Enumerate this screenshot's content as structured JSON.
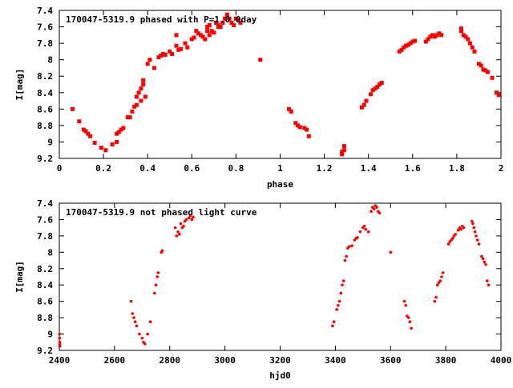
{
  "chart_data": [
    {
      "type": "scatter",
      "title": "170047-5319.9 phased with P=1.0 0day",
      "xlabel": "phase",
      "ylabel": "I[mag]",
      "xlim": [
        0,
        2
      ],
      "ylim": [
        9.2,
        7.4
      ],
      "y_inverted": true,
      "grid": false,
      "xticks": [
        "0",
        "0.2",
        "0.4",
        "0.6",
        "0.8",
        "1",
        "1.2",
        "1.4",
        "1.6",
        "1.8",
        "2"
      ],
      "yticks": [
        "7.4",
        "7.6",
        "7.8",
        "8",
        "8.2",
        "8.4",
        "8.6",
        "8.8",
        "9",
        "9.2"
      ],
      "marker_color": "#ff0000",
      "points": [
        [
          0.06,
          8.6
        ],
        [
          0.09,
          8.75
        ],
        [
          0.11,
          8.85
        ],
        [
          0.12,
          8.87
        ],
        [
          0.13,
          8.9
        ],
        [
          0.14,
          8.93
        ],
        [
          0.16,
          9.01
        ],
        [
          0.19,
          9.07
        ],
        [
          0.21,
          9.1
        ],
        [
          0.24,
          9.03
        ],
        [
          0.26,
          9.0
        ],
        [
          0.26,
          8.9
        ],
        [
          0.27,
          8.88
        ],
        [
          0.28,
          8.85
        ],
        [
          0.29,
          8.83
        ],
        [
          0.31,
          8.7
        ],
        [
          0.32,
          8.7
        ],
        [
          0.33,
          8.63
        ],
        [
          0.34,
          8.57
        ],
        [
          0.35,
          8.55
        ],
        [
          0.35,
          8.45
        ],
        [
          0.36,
          8.4
        ],
        [
          0.37,
          8.35
        ],
        [
          0.37,
          8.5
        ],
        [
          0.38,
          8.3
        ],
        [
          0.38,
          8.25
        ],
        [
          0.39,
          8.45
        ],
        [
          0.4,
          8.05
        ],
        [
          0.41,
          8.0
        ],
        [
          0.43,
          8.1
        ],
        [
          0.45,
          7.97
        ],
        [
          0.46,
          7.95
        ],
        [
          0.47,
          7.93
        ],
        [
          0.48,
          7.94
        ],
        [
          0.5,
          7.9
        ],
        [
          0.51,
          7.93
        ],
        [
          0.53,
          7.7
        ],
        [
          0.53,
          7.83
        ],
        [
          0.54,
          7.88
        ],
        [
          0.55,
          7.87
        ],
        [
          0.57,
          7.8
        ],
        [
          0.58,
          7.85
        ],
        [
          0.6,
          7.75
        ],
        [
          0.61,
          7.73
        ],
        [
          0.62,
          7.65
        ],
        [
          0.63,
          7.68
        ],
        [
          0.64,
          7.7
        ],
        [
          0.65,
          7.72
        ],
        [
          0.66,
          7.75
        ],
        [
          0.67,
          7.6
        ],
        [
          0.67,
          7.65
        ],
        [
          0.68,
          7.58
        ],
        [
          0.68,
          7.7
        ],
        [
          0.69,
          7.65
        ],
        [
          0.7,
          7.67
        ],
        [
          0.71,
          7.55
        ],
        [
          0.72,
          7.58
        ],
        [
          0.72,
          7.6
        ],
        [
          0.73,
          7.6
        ],
        [
          0.74,
          7.55
        ],
        [
          0.75,
          7.5
        ],
        [
          0.76,
          7.45
        ],
        [
          0.77,
          7.5
        ],
        [
          0.78,
          7.55
        ],
        [
          0.79,
          7.58
        ],
        [
          0.8,
          7.5
        ],
        [
          0.81,
          7.52
        ],
        [
          0.82,
          7.55
        ],
        [
          0.91,
          8.0
        ],
        [
          1.04,
          8.6
        ],
        [
          1.05,
          8.63
        ],
        [
          1.07,
          8.77
        ],
        [
          1.08,
          8.8
        ],
        [
          1.09,
          8.82
        ],
        [
          1.11,
          8.83
        ],
        [
          1.12,
          8.85
        ],
        [
          1.13,
          8.93
        ],
        [
          1.28,
          9.15
        ],
        [
          1.28,
          9.12
        ],
        [
          1.29,
          9.05
        ],
        [
          1.29,
          9.1
        ],
        [
          1.37,
          8.58
        ],
        [
          1.38,
          8.55
        ],
        [
          1.39,
          8.5
        ],
        [
          1.41,
          8.42
        ],
        [
          1.42,
          8.37
        ],
        [
          1.43,
          8.35
        ],
        [
          1.44,
          8.33
        ],
        [
          1.45,
          8.3
        ],
        [
          1.46,
          8.28
        ],
        [
          1.54,
          7.9
        ],
        [
          1.55,
          7.88
        ],
        [
          1.56,
          7.85
        ],
        [
          1.57,
          7.83
        ],
        [
          1.58,
          7.82
        ],
        [
          1.59,
          7.8
        ],
        [
          1.6,
          7.78
        ],
        [
          1.61,
          7.77
        ],
        [
          1.66,
          7.78
        ],
        [
          1.67,
          7.75
        ],
        [
          1.68,
          7.72
        ],
        [
          1.69,
          7.7
        ],
        [
          1.7,
          7.72
        ],
        [
          1.71,
          7.7
        ],
        [
          1.72,
          7.68
        ],
        [
          1.73,
          7.7
        ],
        [
          1.82,
          7.62
        ],
        [
          1.82,
          7.65
        ],
        [
          1.83,
          7.7
        ],
        [
          1.84,
          7.72
        ],
        [
          1.85,
          7.75
        ],
        [
          1.86,
          7.8
        ],
        [
          1.87,
          7.85
        ],
        [
          1.88,
          7.9
        ],
        [
          1.9,
          8.05
        ],
        [
          1.91,
          8.07
        ],
        [
          1.92,
          8.12
        ],
        [
          1.93,
          8.13
        ],
        [
          1.94,
          8.15
        ],
        [
          1.96,
          8.22
        ],
        [
          1.98,
          8.4
        ],
        [
          1.99,
          8.43
        ]
      ]
    },
    {
      "type": "scatter",
      "title": "170047-5319.9 not phased light curve",
      "xlabel": "hjd0",
      "ylabel": "I[mag]",
      "xlim": [
        2400,
        4000
      ],
      "ylim": [
        9.2,
        7.4
      ],
      "y_inverted": true,
      "grid": false,
      "xticks": [
        "2400",
        "2600",
        "2800",
        "3000",
        "3200",
        "3400",
        "3600",
        "3800",
        "4000"
      ],
      "yticks": [
        "7.4",
        "7.6",
        "7.8",
        "8",
        "8.2",
        "8.4",
        "8.6",
        "8.8",
        "9",
        "9.2"
      ],
      "marker_color": "#ff0000",
      "points": [
        [
          2401,
          9.0
        ],
        [
          2401,
          9.05
        ],
        [
          2402,
          9.1
        ],
        [
          2402,
          9.13
        ],
        [
          2402,
          9.15
        ],
        [
          2660,
          8.6
        ],
        [
          2665,
          8.75
        ],
        [
          2670,
          8.8
        ],
        [
          2675,
          8.85
        ],
        [
          2680,
          8.9
        ],
        [
          2690,
          9.0
        ],
        [
          2700,
          9.05
        ],
        [
          2705,
          9.1
        ],
        [
          2710,
          9.12
        ],
        [
          2720,
          9.0
        ],
        [
          2730,
          8.85
        ],
        [
          2745,
          8.5
        ],
        [
          2750,
          8.4
        ],
        [
          2755,
          8.3
        ],
        [
          2758,
          8.25
        ],
        [
          2770,
          8.0
        ],
        [
          2773,
          7.98
        ],
        [
          2820,
          7.7
        ],
        [
          2825,
          7.8
        ],
        [
          2830,
          7.75
        ],
        [
          2835,
          7.78
        ],
        [
          2840,
          7.65
        ],
        [
          2845,
          7.7
        ],
        [
          2850,
          7.68
        ],
        [
          2855,
          7.62
        ],
        [
          2860,
          7.6
        ],
        [
          2870,
          7.58
        ],
        [
          2875,
          7.55
        ],
        [
          2880,
          7.6
        ],
        [
          2885,
          7.57
        ],
        [
          3390,
          8.9
        ],
        [
          3395,
          8.85
        ],
        [
          3405,
          8.7
        ],
        [
          3410,
          8.65
        ],
        [
          3415,
          8.6
        ],
        [
          3420,
          8.5
        ],
        [
          3425,
          8.4
        ],
        [
          3430,
          8.35
        ],
        [
          3435,
          8.1
        ],
        [
          3440,
          8.05
        ],
        [
          3445,
          7.95
        ],
        [
          3450,
          7.93
        ],
        [
          3460,
          7.92
        ],
        [
          3470,
          7.85
        ],
        [
          3475,
          7.83
        ],
        [
          3480,
          7.82
        ],
        [
          3490,
          7.75
        ],
        [
          3500,
          7.7
        ],
        [
          3505,
          7.68
        ],
        [
          3510,
          7.72
        ],
        [
          3520,
          7.75
        ],
        [
          3530,
          7.5
        ],
        [
          3535,
          7.45
        ],
        [
          3540,
          7.47
        ],
        [
          3545,
          7.43
        ],
        [
          3550,
          7.45
        ],
        [
          3555,
          7.5
        ],
        [
          3560,
          7.52
        ],
        [
          3600,
          8.0
        ],
        [
          3650,
          8.6
        ],
        [
          3655,
          8.65
        ],
        [
          3660,
          8.78
        ],
        [
          3665,
          8.8
        ],
        [
          3670,
          8.85
        ],
        [
          3675,
          8.93
        ],
        [
          3760,
          8.6
        ],
        [
          3765,
          8.55
        ],
        [
          3770,
          8.4
        ],
        [
          3775,
          8.37
        ],
        [
          3780,
          8.35
        ],
        [
          3785,
          8.3
        ],
        [
          3790,
          8.25
        ],
        [
          3810,
          7.9
        ],
        [
          3815,
          7.87
        ],
        [
          3820,
          7.85
        ],
        [
          3825,
          7.83
        ],
        [
          3830,
          7.8
        ],
        [
          3835,
          7.78
        ],
        [
          3845,
          7.73
        ],
        [
          3850,
          7.7
        ],
        [
          3855,
          7.72
        ],
        [
          3860,
          7.68
        ],
        [
          3865,
          7.7
        ],
        [
          3895,
          7.62
        ],
        [
          3898,
          7.65
        ],
        [
          3902,
          7.7
        ],
        [
          3906,
          7.75
        ],
        [
          3910,
          7.8
        ],
        [
          3915,
          7.85
        ],
        [
          3920,
          7.9
        ],
        [
          3930,
          8.05
        ],
        [
          3935,
          8.08
        ],
        [
          3940,
          8.12
        ],
        [
          3945,
          8.15
        ],
        [
          3950,
          8.35
        ],
        [
          3955,
          8.4
        ]
      ]
    }
  ]
}
